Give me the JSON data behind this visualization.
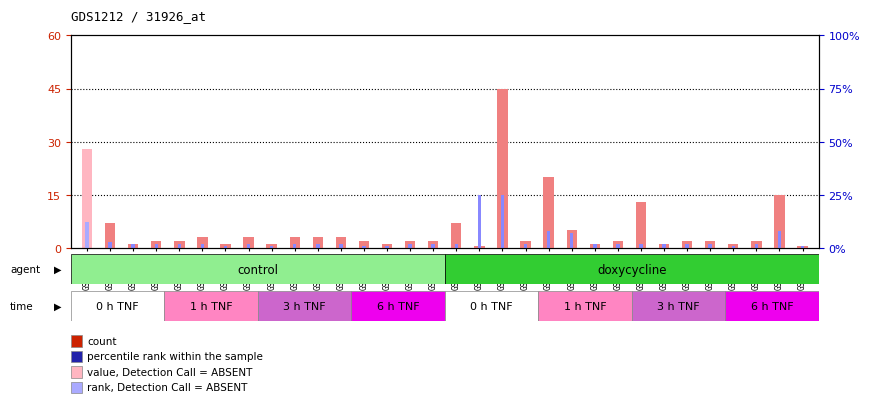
{
  "title": "GDS1212 / 31926_at",
  "samples": [
    "GSM50270",
    "GSM50306",
    "GSM50315",
    "GSM50323",
    "GSM50331",
    "GSM50297",
    "GSM50308",
    "GSM50316",
    "GSM50324",
    "GSM50298",
    "GSM50299",
    "GSM50317",
    "GSM50325",
    "GSM50309",
    "GSM50318",
    "GSM50326",
    "GSM50301",
    "GSM50310",
    "GSM50319",
    "GSM50327",
    "GSM50302",
    "GSM50312",
    "GSM50320",
    "GSM50328",
    "GSM50304",
    "GSM50313",
    "GSM50321",
    "GSM50329",
    "GSM50305",
    "GSM50314",
    "GSM50322",
    "GSM50330"
  ],
  "count_values": [
    28,
    7,
    1,
    2,
    2,
    3,
    1,
    3,
    1,
    3,
    3,
    3,
    2,
    1,
    2,
    2,
    7,
    0.5,
    45,
    2,
    20,
    5,
    1,
    2,
    13,
    1,
    2,
    2,
    1,
    2,
    15,
    0.5
  ],
  "rank_values_pct": [
    12,
    3,
    2,
    2,
    2,
    2,
    1,
    2,
    1,
    2,
    2,
    2,
    1,
    1,
    2,
    2,
    2,
    25,
    25,
    2,
    8,
    7,
    2,
    2,
    2,
    2,
    2,
    2,
    1,
    2,
    8,
    1
  ],
  "absent_count_values": [
    28,
    0,
    0,
    0,
    0,
    0,
    0,
    0,
    0,
    0,
    0,
    0,
    0,
    0,
    0,
    0,
    0,
    0,
    0,
    0,
    0,
    0,
    0,
    0,
    0,
    0,
    0,
    0,
    0,
    0,
    0,
    0
  ],
  "absent_rank_values_pct": [
    12,
    0,
    0,
    0,
    0,
    0,
    0,
    0,
    0,
    0,
    0,
    0,
    0,
    0,
    0,
    0,
    0,
    0,
    0,
    0,
    0,
    0,
    0,
    0,
    0,
    0,
    0,
    0,
    0,
    0,
    0,
    0
  ],
  "agent_groups": [
    {
      "label": "control",
      "start": 0,
      "end": 15,
      "color": "#90EE90"
    },
    {
      "label": "doxycycline",
      "start": 16,
      "end": 31,
      "color": "#32CD32"
    }
  ],
  "time_groups": [
    {
      "label": "0 h TNF",
      "start": 0,
      "end": 3,
      "color": "#FFFFFF"
    },
    {
      "label": "1 h TNF",
      "start": 4,
      "end": 7,
      "color": "#FF85C2"
    },
    {
      "label": "3 h TNF",
      "start": 8,
      "end": 11,
      "color": "#CC66CC"
    },
    {
      "label": "6 h TNF",
      "start": 12,
      "end": 15,
      "color": "#EE00EE"
    },
    {
      "label": "0 h TNF",
      "start": 16,
      "end": 19,
      "color": "#FFFFFF"
    },
    {
      "label": "1 h TNF",
      "start": 20,
      "end": 23,
      "color": "#FF85C2"
    },
    {
      "label": "3 h TNF",
      "start": 24,
      "end": 27,
      "color": "#CC66CC"
    },
    {
      "label": "6 h TNF",
      "start": 28,
      "end": 31,
      "color": "#EE00EE"
    }
  ],
  "ylim_left": [
    0,
    60
  ],
  "ylim_right": [
    0,
    100
  ],
  "yticks_left": [
    0,
    15,
    30,
    45,
    60
  ],
  "yticks_right": [
    0,
    25,
    50,
    75,
    100
  ],
  "ytick_labels_right": [
    "0%",
    "25%",
    "50%",
    "75%",
    "100%"
  ],
  "bar_color_count": "#F08080",
  "bar_color_rank": "#8888FF",
  "bar_color_absent_count": "#FFB6C1",
  "bar_color_absent_rank": "#AAAAFF",
  "background_color": "white",
  "legend_items": [
    {
      "color": "#CC2200",
      "label": "count"
    },
    {
      "color": "#2222AA",
      "label": "percentile rank within the sample"
    },
    {
      "color": "#FFB6C1",
      "label": "value, Detection Call = ABSENT"
    },
    {
      "color": "#AAAAFF",
      "label": "rank, Detection Call = ABSENT"
    }
  ]
}
